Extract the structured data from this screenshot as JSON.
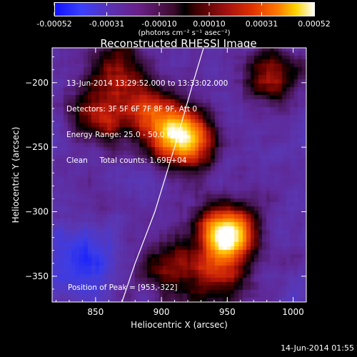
{
  "chart_data": {
    "type": "heatmap",
    "title": "Reconstructed RHESSI Image",
    "xlabel": "Heliocentric X (arcsec)",
    "ylabel": "Heliocentric Y (arcsec)",
    "xlim": [
      817,
      1010
    ],
    "ylim": [
      -370,
      -173
    ],
    "x_ticks": [
      850,
      900,
      950,
      1000
    ],
    "y_ticks": [
      -200,
      -250,
      -300,
      -350
    ],
    "colorbar": {
      "min": -0.00052,
      "max": 0.00052,
      "ticks": [
        -0.00052,
        -0.00031,
        -0.0001,
        0.0001,
        0.00031,
        0.00052
      ],
      "tick_labels": [
        "-0.00052",
        "-0.00031",
        "-0.00010",
        "0.00010",
        "0.00031",
        "0.00052"
      ],
      "unit_label": "(photons cm⁻² s⁻¹ asec⁻²)"
    },
    "annotations": [
      "13-Jun-2014 13:29:52.000 to 13:33:02.000",
      "Detectors: 3F 5F 6F 7F 8F 9F, Att 0",
      "Energy Range: 25.0 - 50.0 keV",
      "Clean     Total counts: 1.69E+04"
    ],
    "peak_label": "Position of Peak = [953,-322]",
    "footer": "14-Jun-2014 01:55",
    "limb_points": [
      [
        870,
        -370
      ],
      [
        880,
        -340
      ],
      [
        895,
        -300
      ],
      [
        910,
        -250
      ],
      [
        924,
        -200
      ],
      [
        932,
        -173
      ]
    ],
    "sources": [
      {
        "x": 950,
        "y": -318,
        "peak": 1.0
      },
      {
        "x": 918,
        "y": -245,
        "peak": 0.85
      },
      {
        "x": 895,
        "y": -225,
        "peak": 0.5
      },
      {
        "x": 855,
        "y": -225,
        "peak": 0.45
      },
      {
        "x": 865,
        "y": -190,
        "peak": 0.4
      },
      {
        "x": 985,
        "y": -195,
        "peak": 0.45
      },
      {
        "x": 905,
        "y": -345,
        "peak": 0.4
      },
      {
        "x": 945,
        "y": -355,
        "peak": 0.4
      }
    ],
    "colors": {
      "axis": "#ffffff",
      "limb": "#ffffff",
      "background": "#000000"
    }
  }
}
